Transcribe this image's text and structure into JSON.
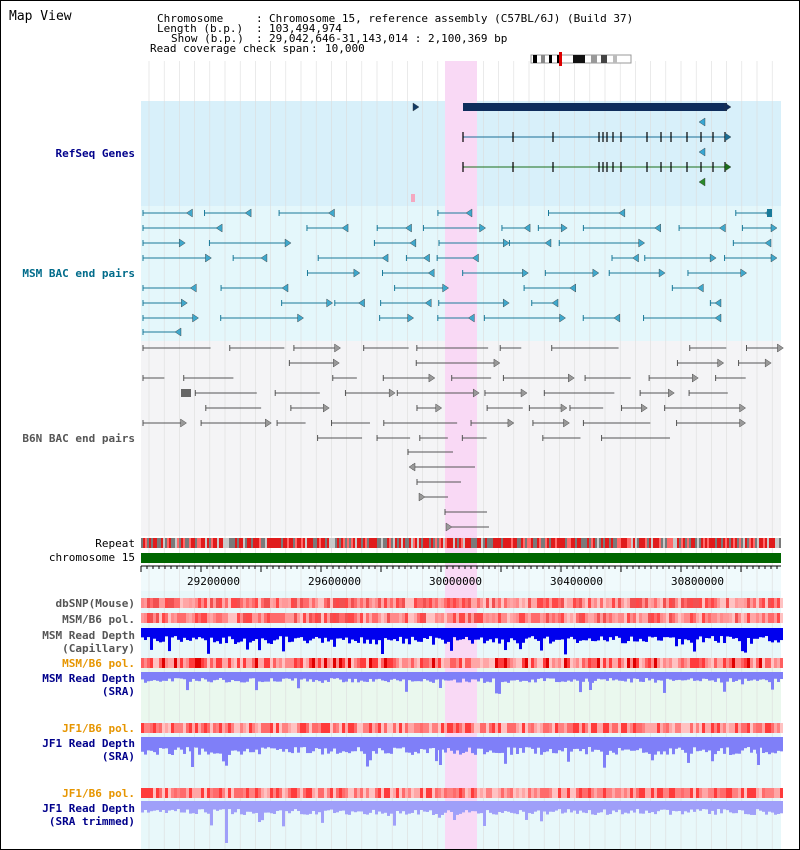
{
  "view_title": "Map View",
  "header": {
    "chromosome_key": "Chromosome",
    "chromosome_val": "Chromosome 15, reference assembly (C57BL/6J) (Build 37)",
    "length_key": "Length (b.p.)",
    "length_val": "103,494,974",
    "show_key": "Show (b.p.)",
    "show_val": "29,042,646-31,143,014 : 2,100,369 bp",
    "span_key": "Read coverage check span",
    "span_val": "10,000"
  },
  "tracks": {
    "refseq": "RefSeq Genes",
    "msm_bac": "MSM BAC end pairs",
    "b6n_bac": "B6N BAC end pairs",
    "repeat": "Repeat",
    "chromosome": "chromosome 15",
    "dbsnp": "dbSNP(Mouse)",
    "msm_pol_1": "MSM/B6 pol.",
    "msm_depth_cap_1": "MSM Read Depth",
    "msm_depth_cap_2": "(Capillary)",
    "msm_pol_2": "MSM/B6 pol.",
    "msm_depth_sra_1": "MSM Read Depth",
    "msm_depth_sra_2": "(SRA)",
    "jf1_pol_1": "JF1/B6 pol.",
    "jf1_depth_sra_1": "JF1 Read Depth",
    "jf1_depth_sra_2": "(SRA)",
    "jf1_pol_2": "JF1/B6 pol.",
    "jf1_depth_trim_1": "JF1 Read Depth",
    "jf1_depth_trim_2": "(SRA trimmed)"
  },
  "axis_ticks": [
    "29200000",
    "29600000",
    "30000000",
    "30400000",
    "30800000"
  ],
  "colors": {
    "refseq_bg": "#d8f0fa",
    "msm_bg": "#e4f7fb",
    "b6n_bg": "#f4f4f6",
    "highlight": "#f9d9f5",
    "chromosome_bar": "#006600",
    "depth_blue": "#0000ee",
    "depth_light": "#7f7ff8"
  }
}
